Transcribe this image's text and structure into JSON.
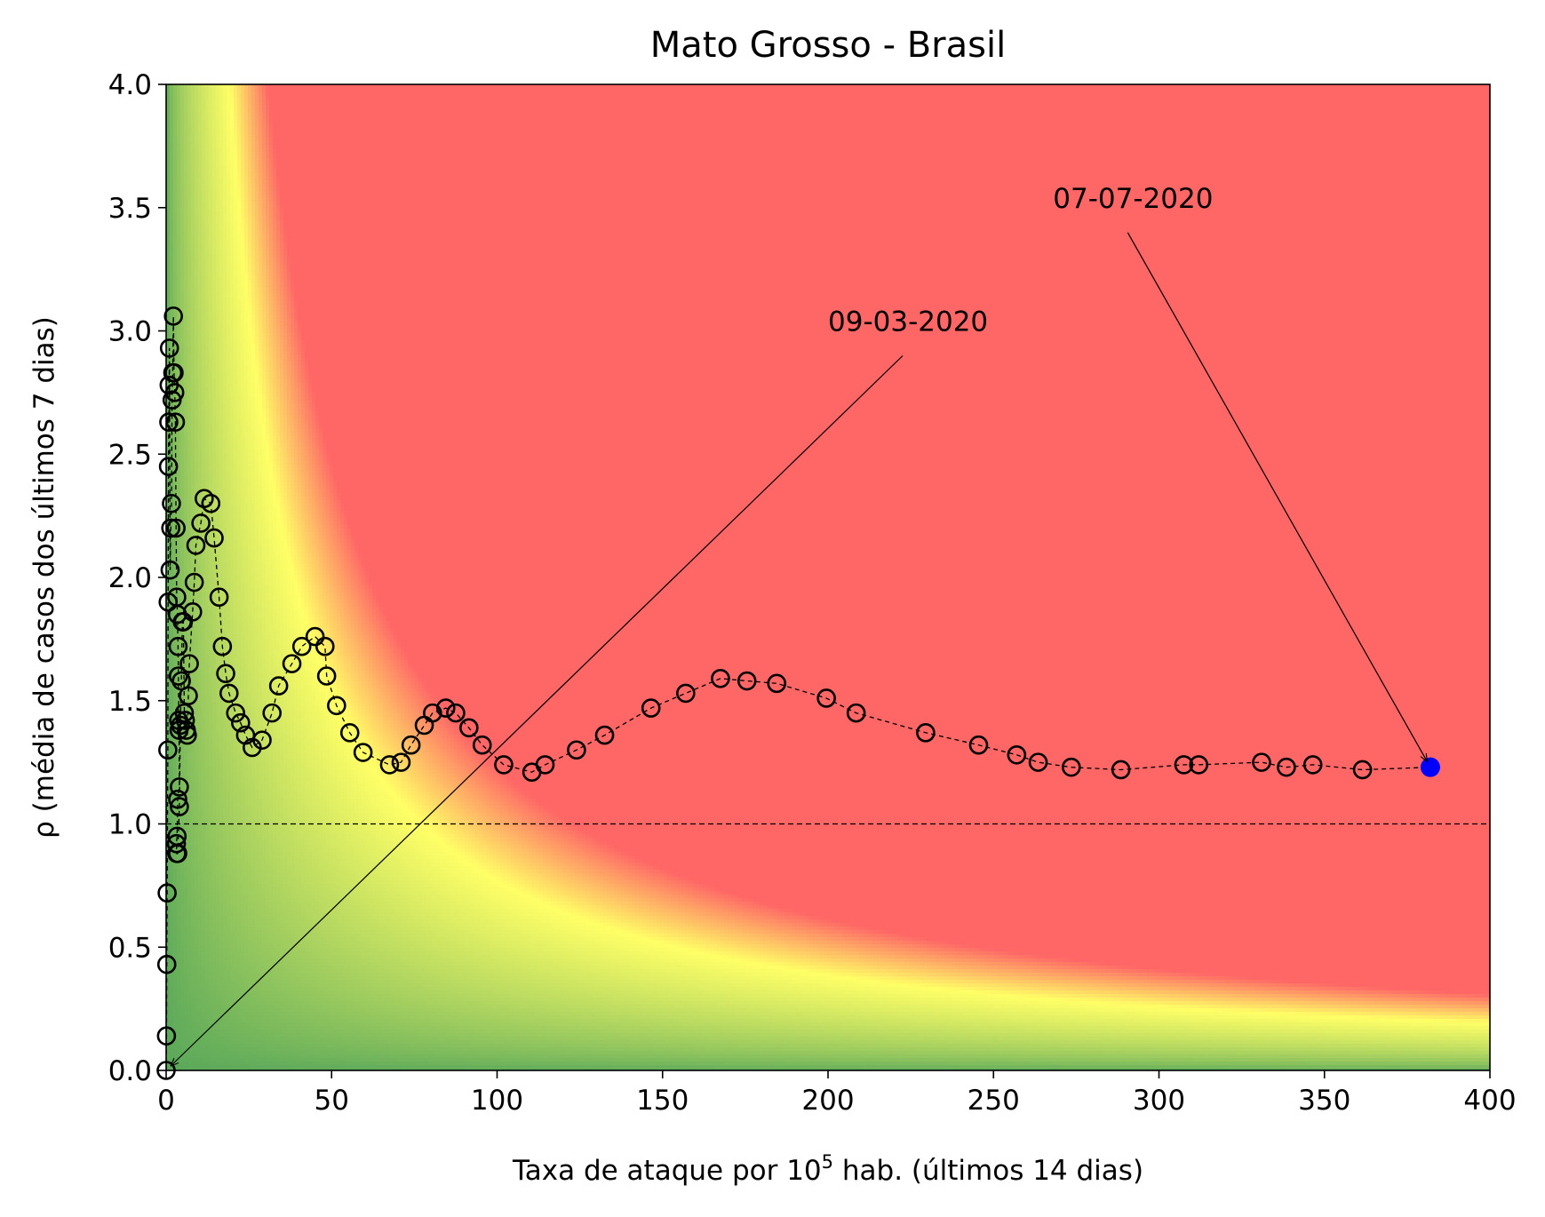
{
  "chart_data": {
    "type": "scatter",
    "title": "Mato Grosso - Brasil",
    "xlabel_main": "Taxa de ataque por 10",
    "xlabel_sup": "5",
    "xlabel_rest": " hab. (últimos 14 dias)",
    "ylabel": "ρ (média de casos dos últimos 7 dias)",
    "xlim": [
      0,
      400
    ],
    "ylim": [
      0,
      4.0
    ],
    "xticks": [
      0,
      50,
      100,
      150,
      200,
      250,
      300,
      350,
      400
    ],
    "xtick_labels": [
      "0",
      "50",
      "100",
      "150",
      "200",
      "250",
      "300",
      "350",
      "400"
    ],
    "yticks": [
      0,
      0.5,
      1.0,
      1.5,
      2.0,
      2.5,
      3.0,
      3.5,
      4.0
    ],
    "ytick_labels": [
      "0.0",
      "0.5",
      "1.0",
      "1.5",
      "2.0",
      "2.5",
      "3.0",
      "3.5",
      "4.0"
    ],
    "reference_line": {
      "y": 1.0,
      "style": "dashed"
    },
    "background": "risk heatmap: green (low) to yellow to red (high) as rate times rho increases",
    "colors": {
      "green": "#5aa85a",
      "yellow": "#ffff66",
      "red": "#ff6666",
      "last_point": "#0000ff",
      "markers": "#000000"
    },
    "series": [
      {
        "marker": "hollow circle",
        "line": "dashed",
        "points": [
          [
            0.0,
            0.0
          ],
          [
            0.1,
            0.14
          ],
          [
            0.2,
            0.43
          ],
          [
            0.3,
            0.72
          ],
          [
            0.5,
            1.3
          ],
          [
            0.6,
            1.9
          ],
          [
            0.7,
            2.45
          ],
          [
            0.8,
            2.63
          ],
          [
            0.9,
            2.78
          ],
          [
            1.0,
            2.93
          ],
          [
            1.2,
            2.03
          ],
          [
            1.4,
            2.2
          ],
          [
            1.6,
            2.3
          ],
          [
            1.8,
            2.72
          ],
          [
            2.0,
            2.83
          ],
          [
            2.2,
            3.06
          ],
          [
            2.4,
            2.83
          ],
          [
            2.6,
            2.75
          ],
          [
            2.8,
            2.63
          ],
          [
            3.0,
            2.2
          ],
          [
            3.2,
            1.92
          ],
          [
            3.4,
            1.85
          ],
          [
            3.6,
            1.72
          ],
          [
            3.7,
            1.6
          ],
          [
            3.8,
            1.42
          ],
          [
            3.9,
            1.38
          ],
          [
            4.0,
            1.15
          ],
          [
            3.5,
            1.1
          ],
          [
            3.3,
            0.95
          ],
          [
            3.1,
            0.92
          ],
          [
            3.2,
            0.88
          ],
          [
            3.5,
            0.88
          ],
          [
            4.0,
            1.07
          ],
          [
            4.3,
            1.4
          ],
          [
            4.6,
            1.58
          ],
          [
            4.9,
            1.82
          ],
          [
            5.2,
            1.82
          ],
          [
            5.5,
            1.45
          ],
          [
            5.8,
            1.42
          ],
          [
            6.1,
            1.38
          ],
          [
            6.4,
            1.36
          ],
          [
            6.7,
            1.52
          ],
          [
            7.0,
            1.65
          ],
          [
            8.0,
            1.86
          ],
          [
            8.5,
            1.98
          ],
          [
            9.0,
            2.13
          ],
          [
            10.5,
            2.22
          ],
          [
            11.5,
            2.32
          ],
          [
            13.5,
            2.3
          ],
          [
            14.5,
            2.16
          ],
          [
            16.0,
            1.92
          ],
          [
            17.0,
            1.72
          ],
          [
            18.0,
            1.61
          ],
          [
            19.0,
            1.53
          ],
          [
            21.0,
            1.45
          ],
          [
            22.5,
            1.41
          ],
          [
            24.0,
            1.36
          ],
          [
            26.0,
            1.31
          ],
          [
            29.0,
            1.34
          ],
          [
            32.0,
            1.45
          ],
          [
            34.0,
            1.56
          ],
          [
            38.0,
            1.65
          ],
          [
            41.0,
            1.72
          ],
          [
            45.0,
            1.76
          ],
          [
            48.0,
            1.72
          ],
          [
            48.5,
            1.6
          ],
          [
            51.5,
            1.48
          ],
          [
            55.5,
            1.37
          ],
          [
            59.5,
            1.29
          ],
          [
            67.5,
            1.24
          ],
          [
            71.0,
            1.25
          ],
          [
            74.0,
            1.32
          ],
          [
            78.0,
            1.4
          ],
          [
            80.5,
            1.45
          ],
          [
            84.5,
            1.47
          ],
          [
            87.5,
            1.45
          ],
          [
            91.5,
            1.39
          ],
          [
            95.5,
            1.32
          ],
          [
            102.0,
            1.24
          ],
          [
            110.5,
            1.21
          ],
          [
            114.5,
            1.24
          ],
          [
            124.0,
            1.3
          ],
          [
            132.5,
            1.36
          ],
          [
            146.5,
            1.47
          ],
          [
            157.0,
            1.53
          ],
          [
            167.5,
            1.59
          ],
          [
            175.5,
            1.58
          ],
          [
            184.5,
            1.57
          ],
          [
            199.5,
            1.51
          ],
          [
            208.5,
            1.45
          ],
          [
            229.5,
            1.37
          ],
          [
            245.5,
            1.32
          ],
          [
            257.0,
            1.28
          ],
          [
            263.5,
            1.25
          ],
          [
            273.5,
            1.23
          ],
          [
            288.5,
            1.22
          ],
          [
            307.5,
            1.24
          ],
          [
            312.0,
            1.24
          ],
          [
            331.0,
            1.25
          ],
          [
            338.5,
            1.23
          ],
          [
            346.5,
            1.24
          ],
          [
            361.5,
            1.22
          ]
        ],
        "last_point": [
          382.0,
          1.23
        ]
      }
    ],
    "annotations": [
      {
        "text": "09-03-2020",
        "text_xy": [
          200,
          3.0
        ],
        "arrow_to": [
          0.0,
          0.0
        ]
      },
      {
        "text": "07-07-2020",
        "text_xy": [
          268,
          3.5
        ],
        "arrow_to": [
          382.0,
          1.23
        ]
      }
    ]
  }
}
